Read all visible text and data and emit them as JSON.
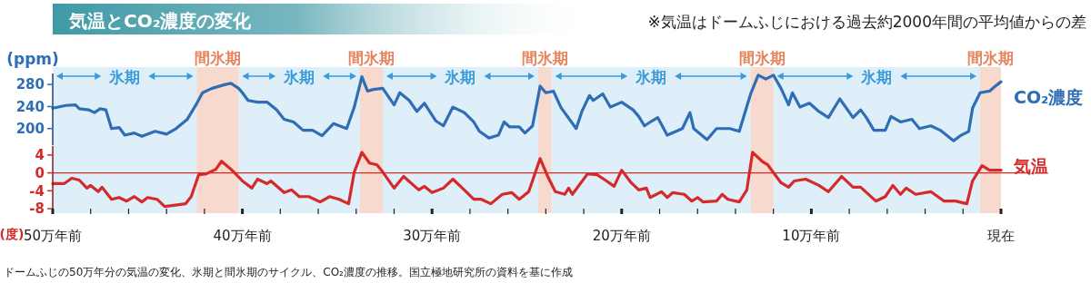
{
  "chart_data": [
    {
      "type": "line",
      "title": "気温とCO₂濃度の変化",
      "subtitle": "※気温はドームふじにおける過去約2000年間の平均値からの差",
      "ylabel": "(ppm)",
      "annotations": [
        "ドームふじの50万年分の気温の変化、氷期と間氷期のサイクル、CO₂濃度の推移。国立極地研究所の資料を基に作成"
      ],
      "xlim": [
        50,
        0
      ],
      "ylim": [
        170,
        300
      ],
      "yticks": [
        200,
        240,
        280
      ],
      "tick_labels": "y",
      "bands": [
        {
          "axis": "x",
          "from": 50,
          "to": 42.4,
          "label": "氷期",
          "color": "#3a9ad9"
        },
        {
          "axis": "x",
          "from": 42.4,
          "to": 40.2,
          "label": "間氷期",
          "color": "#e8825a"
        },
        {
          "axis": "x",
          "from": 40.2,
          "to": 33.8,
          "label": "氷期",
          "color": "#3a9ad9"
        },
        {
          "axis": "x",
          "from": 33.8,
          "to": 32.6,
          "label": "間氷期",
          "color": "#e8825a"
        },
        {
          "axis": "x",
          "from": 32.6,
          "to": 24.4,
          "label": "氷期",
          "color": "#3a9ad9"
        },
        {
          "axis": "x",
          "from": 24.4,
          "to": 23.7,
          "label": "間氷期",
          "color": "#e8825a"
        },
        {
          "axis": "x",
          "from": 23.7,
          "to": 13.2,
          "label": "氷期",
          "color": "#3a9ad9"
        },
        {
          "axis": "x",
          "from": 13.2,
          "to": 12.0,
          "label": "間氷期",
          "color": "#e8825a"
        },
        {
          "axis": "x",
          "from": 12.0,
          "to": 1.1,
          "label": "氷期",
          "color": "#3a9ad9"
        },
        {
          "axis": "x",
          "from": 1.1,
          "to": 0,
          "label": "間氷期",
          "color": "#e8825a"
        }
      ],
      "series": [
        {
          "name": "CO₂濃度",
          "color": "#2f6db5",
          "x": [
            50,
            49.3,
            48.8,
            48.6,
            48.1,
            47.8,
            47.5,
            47.2,
            46.9,
            46.5,
            46.2,
            45.7,
            45.3,
            44.6,
            44.0,
            43.5,
            42.9,
            42.4,
            42.1,
            41.6,
            40.9,
            40.6,
            40.2,
            40.0,
            39.7,
            39.2,
            38.7,
            38.2,
            37.8,
            37.3,
            36.8,
            36.3,
            35.8,
            35.2,
            34.5,
            34.1,
            33.7,
            33.4,
            33.1,
            32.6,
            32.0,
            31.7,
            31.2,
            30.8,
            30.4,
            29.8,
            29.4,
            28.9,
            28.3,
            27.8,
            27.5,
            27.0,
            26.5,
            26.2,
            25.9,
            25.4,
            25.1,
            24.7,
            24.3,
            24.0,
            23.6,
            23.2,
            22.4,
            22.1,
            21.7,
            21.5,
            21.0,
            20.6,
            20.0,
            19.4,
            19.1,
            18.8,
            18.4,
            18.1,
            17.6,
            16.8,
            16.4,
            16.2,
            15.5,
            15.0,
            14.3,
            13.8,
            13.2,
            12.8,
            12.4,
            12.0,
            11.6,
            11.2,
            11.0,
            10.6,
            10.1,
            9.6,
            9.1,
            8.5,
            7.8,
            7.4,
            7.1,
            6.7,
            6.1,
            5.8,
            5.3,
            4.7,
            4.3,
            3.7,
            3.2,
            2.5,
            2.1,
            1.7,
            1.5,
            1.1,
            0.6,
            0.3,
            0
          ],
          "values": [
            237,
            242,
            243,
            236,
            234,
            229,
            236,
            234,
            200,
            202,
            188,
            192,
            186,
            195,
            190,
            200,
            217,
            246,
            265,
            273,
            280,
            282,
            273,
            265,
            251,
            248,
            248,
            234,
            217,
            212,
            197,
            197,
            187,
            209,
            200,
            239,
            294,
            268,
            271,
            273,
            243,
            265,
            251,
            231,
            246,
            214,
            205,
            239,
            229,
            212,
            195,
            183,
            188,
            212,
            203,
            203,
            192,
            205,
            277,
            265,
            268,
            238,
            200,
            231,
            260,
            251,
            263,
            239,
            248,
            234,
            222,
            205,
            214,
            220,
            188,
            200,
            229,
            200,
            180,
            200,
            200,
            195,
            263,
            297,
            290,
            297,
            273,
            243,
            265,
            239,
            246,
            231,
            220,
            254,
            220,
            234,
            220,
            197,
            197,
            222,
            212,
            217,
            200,
            205,
            197,
            178,
            188,
            195,
            237,
            265,
            268,
            277,
            285
          ]
        }
      ]
    },
    {
      "type": "line",
      "ylabel": "(度)",
      "xlim": [
        50,
        0
      ],
      "ylim": [
        -9,
        6
      ],
      "yticks": [
        -8,
        -4,
        0,
        4
      ],
      "xticks": [
        {
          "value": 50,
          "label": "50万年前"
        },
        {
          "value": 48,
          "label": null
        },
        {
          "value": 46,
          "label": null
        },
        {
          "value": 44,
          "label": null
        },
        {
          "value": 42,
          "label": null
        },
        {
          "value": 40,
          "label": "40万年前"
        },
        {
          "value": 38,
          "label": null
        },
        {
          "value": 36,
          "label": null
        },
        {
          "value": 34,
          "label": null
        },
        {
          "value": 32,
          "label": null
        },
        {
          "value": 30,
          "label": "30万年前"
        },
        {
          "value": 28,
          "label": null
        },
        {
          "value": 26,
          "label": null
        },
        {
          "value": 24,
          "label": null
        },
        {
          "value": 22,
          "label": null
        },
        {
          "value": 20,
          "label": "20万年前"
        },
        {
          "value": 18,
          "label": null
        },
        {
          "value": 16,
          "label": null
        },
        {
          "value": 14,
          "label": null
        },
        {
          "value": 12,
          "label": null
        },
        {
          "value": 10,
          "label": "10万年前"
        },
        {
          "value": 8,
          "label": null
        },
        {
          "value": 6,
          "label": null
        },
        {
          "value": 4,
          "label": null
        },
        {
          "value": 2,
          "label": null
        },
        {
          "value": 0,
          "label": "現在"
        }
      ],
      "ref_lines": [
        {
          "axis": "y",
          "value": 0,
          "color": "#d42a2a"
        }
      ],
      "bands": [
        {
          "axis": "x",
          "from": 50,
          "to": 42.4,
          "color": "#3a9ad9"
        },
        {
          "axis": "x",
          "from": 42.4,
          "to": 40.2,
          "color": "#e8825a"
        },
        {
          "axis": "x",
          "from": 40.2,
          "to": 33.8,
          "color": "#3a9ad9"
        },
        {
          "axis": "x",
          "from": 33.8,
          "to": 32.6,
          "color": "#e8825a"
        },
        {
          "axis": "x",
          "from": 32.6,
          "to": 24.4,
          "color": "#3a9ad9"
        },
        {
          "axis": "x",
          "from": 24.4,
          "to": 23.7,
          "color": "#e8825a"
        },
        {
          "axis": "x",
          "from": 23.7,
          "to": 13.2,
          "color": "#3a9ad9"
        },
        {
          "axis": "x",
          "from": 13.2,
          "to": 12.0,
          "color": "#e8825a"
        },
        {
          "axis": "x",
          "from": 12.0,
          "to": 1.1,
          "color": "#3a9ad9"
        },
        {
          "axis": "x",
          "from": 1.1,
          "to": 0,
          "color": "#e8825a"
        }
      ],
      "series": [
        {
          "name": "気温",
          "color": "#d42a2a",
          "x": [
            50,
            49.4,
            49.0,
            48.6,
            48.2,
            48.0,
            47.6,
            47.4,
            46.9,
            46.5,
            46.1,
            45.7,
            45.3,
            45.0,
            44.5,
            44.1,
            43.7,
            43.0,
            42.7,
            42.3,
            41.9,
            41.4,
            41.1,
            40.6,
            40.0,
            39.5,
            39.2,
            38.7,
            38.5,
            37.8,
            37.4,
            37.0,
            36.5,
            35.9,
            35.4,
            34.9,
            34.4,
            34.1,
            33.7,
            33.3,
            32.9,
            32.6,
            32.0,
            31.5,
            30.7,
            30.4,
            30.0,
            29.4,
            28.9,
            28.3,
            27.8,
            27.4,
            26.9,
            26.3,
            25.8,
            25.4,
            24.9,
            24.3,
            23.9,
            23.5,
            23.0,
            22.8,
            22.6,
            21.8,
            21.3,
            20.8,
            20.4,
            20.0,
            19.5,
            19.1,
            18.7,
            18.5,
            17.9,
            17.6,
            17.3,
            16.7,
            16.3,
            16.0,
            15.7,
            15.0,
            14.7,
            14.4,
            13.8,
            13.4,
            13.1,
            12.6,
            12.3,
            11.6,
            11.2,
            10.9,
            10.3,
            9.6,
            9.1,
            8.4,
            7.8,
            7.4,
            6.6,
            6.1,
            5.7,
            5.3,
            5.0,
            4.5,
            3.7,
            3.0,
            2.4,
            1.8,
            1.5,
            1.0,
            0.6,
            0
          ],
          "values": [
            -2.4,
            -2.4,
            -1.2,
            -1.6,
            -3.4,
            -2.8,
            -4.2,
            -3.2,
            -5.9,
            -5.5,
            -6.3,
            -5.3,
            -6.5,
            -5.5,
            -5.9,
            -7.5,
            -7.3,
            -6.9,
            -5.3,
            -0.4,
            -0.2,
            0.8,
            2.6,
            0.8,
            -1.8,
            -3.4,
            -1.4,
            -2.4,
            -1.8,
            -4.4,
            -3.8,
            -5.3,
            -5.3,
            -6.5,
            -5.3,
            -5.9,
            -6.9,
            0.2,
            4.6,
            2.2,
            1.8,
            0.2,
            -3.4,
            -0.8,
            -3.8,
            -3.0,
            -4.4,
            -3.4,
            -1.4,
            -3.8,
            -5.9,
            -5.9,
            -6.9,
            -4.8,
            -4.4,
            -5.9,
            -4.2,
            3.2,
            -0.8,
            -4.2,
            -4.8,
            -3.4,
            -4.8,
            -0.2,
            -0.4,
            -1.8,
            -3.0,
            0.6,
            -2.2,
            -3.8,
            -3.4,
            -5.5,
            -4.2,
            -5.5,
            -4.4,
            -4.8,
            -6.3,
            -5.5,
            -6.5,
            -6.3,
            -4.8,
            -5.9,
            -6.5,
            -3.8,
            4.6,
            2.6,
            1.8,
            -2.2,
            -3.2,
            -1.8,
            -1.4,
            -2.8,
            -4.2,
            -0.8,
            -3.2,
            -3.2,
            -6.3,
            -5.3,
            -2.8,
            -4.8,
            -3.4,
            -4.8,
            -4.2,
            -6.3,
            -6.3,
            -6.9,
            -1.8,
            1.6,
            0.6,
            0.6
          ]
        }
      ]
    }
  ]
}
